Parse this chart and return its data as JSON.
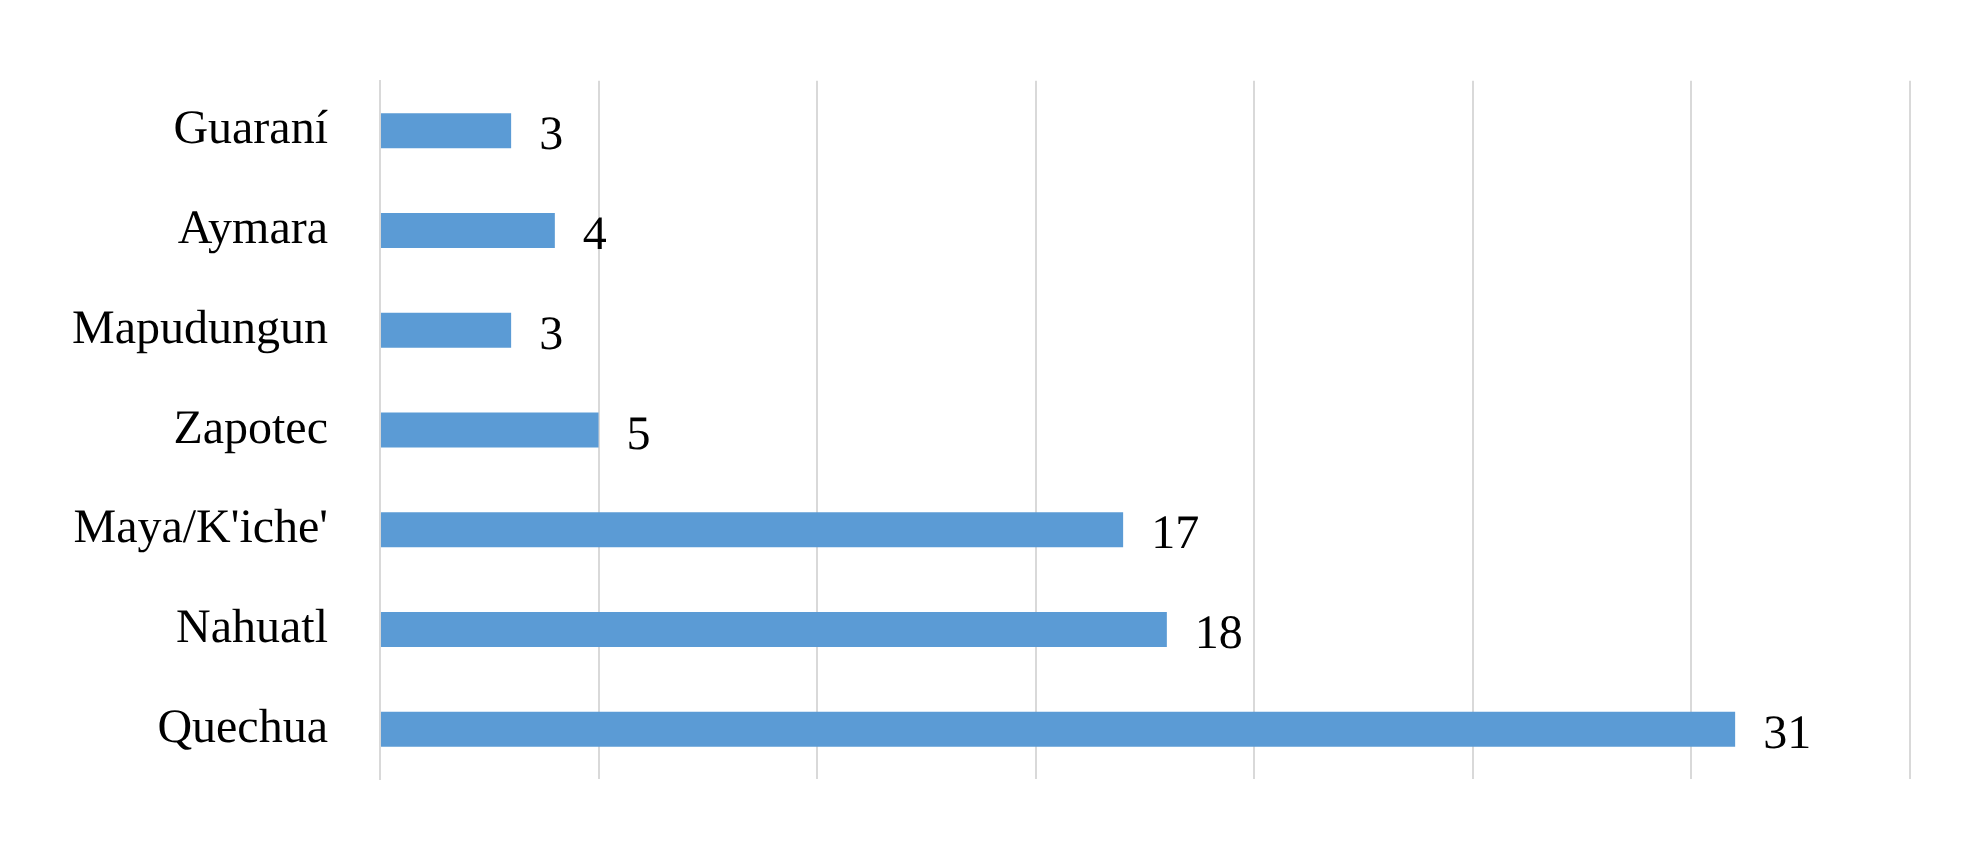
{
  "chart_data": {
    "type": "bar",
    "orientation": "horizontal",
    "categories": [
      "Guaraní",
      "Aymara",
      "Mapudungun",
      "Zapotec",
      "Maya/K'iche'",
      "Nahuatl",
      "Quechua"
    ],
    "values": [
      3,
      4,
      3,
      5,
      17,
      18,
      31
    ],
    "color": "#5b9bd5",
    "xlim": [
      0,
      35
    ],
    "xticks": [
      {
        "value": 0,
        "label": null
      },
      {
        "value": 5,
        "label": null
      },
      {
        "value": 10,
        "label": null
      },
      {
        "value": 15,
        "label": null
      },
      {
        "value": 20,
        "label": null
      },
      {
        "value": 25,
        "label": null
      },
      {
        "value": 30,
        "label": null
      },
      {
        "value": 35,
        "label": null
      }
    ],
    "grid": "x",
    "tick_labels": "y",
    "data_labels": true,
    "legend": false
  }
}
